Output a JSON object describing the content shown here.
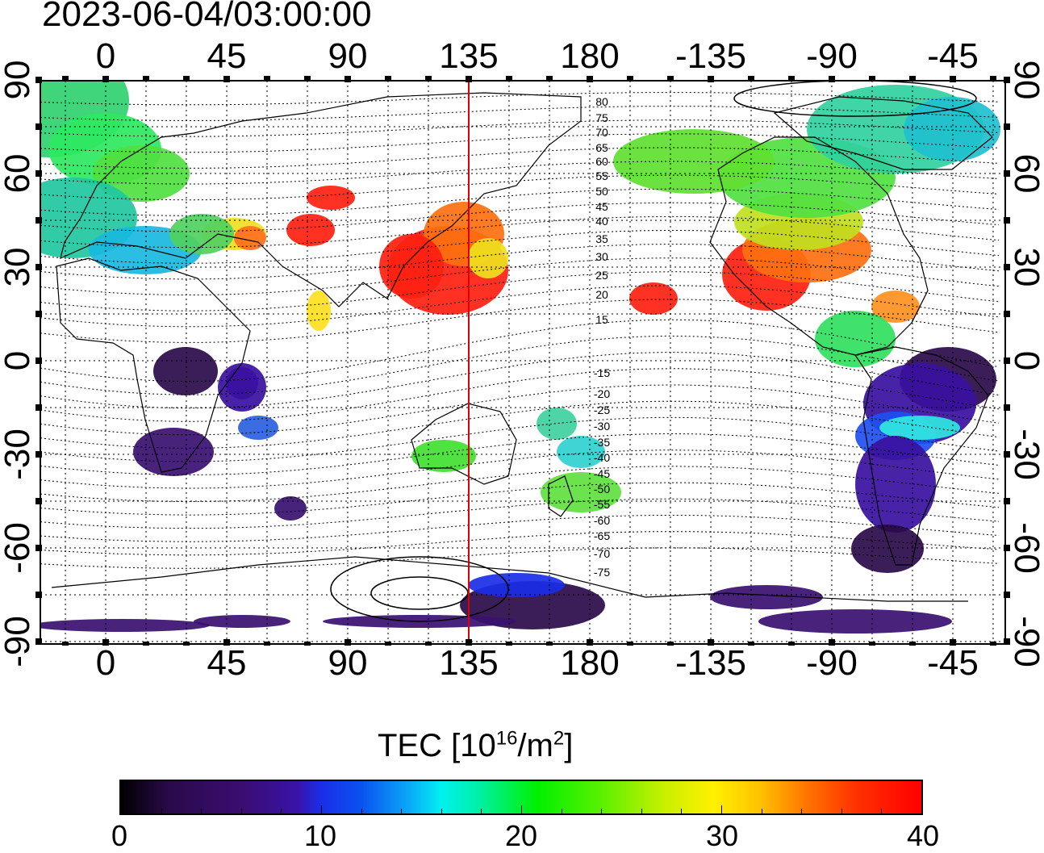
{
  "timestamp": "2023-06-04/03:00:00",
  "lon_labels": [
    "0",
    "45",
    "90",
    "135",
    "180",
    "-135",
    "-90",
    "-45"
  ],
  "lat_labels": [
    "90",
    "60",
    "30",
    "0",
    "-30",
    "-60",
    "-90"
  ],
  "contour_labels": [
    "80",
    "75",
    "70",
    "65",
    "60",
    "55",
    "50",
    "45",
    "40",
    "35",
    "30",
    "25",
    "20",
    "15",
    "-15",
    "-20",
    "-25",
    "-30",
    "-35",
    "-40",
    "-45",
    "-50",
    "-55",
    "-60",
    "-65",
    "-70",
    "-75"
  ],
  "colorbar": {
    "title_main": "TEC  [10",
    "title_sup1": "16",
    "title_mid": "/m",
    "title_sup2": "2",
    "title_end": "]",
    "tick_labels": [
      "0",
      "10",
      "20",
      "30",
      "40"
    ],
    "range": [
      0,
      40
    ]
  },
  "marker": {
    "longitude": 135,
    "color": "#e00000"
  },
  "map": {
    "lon_range": [
      -25,
      330
    ],
    "lat_range": [
      -92,
      92
    ]
  }
}
